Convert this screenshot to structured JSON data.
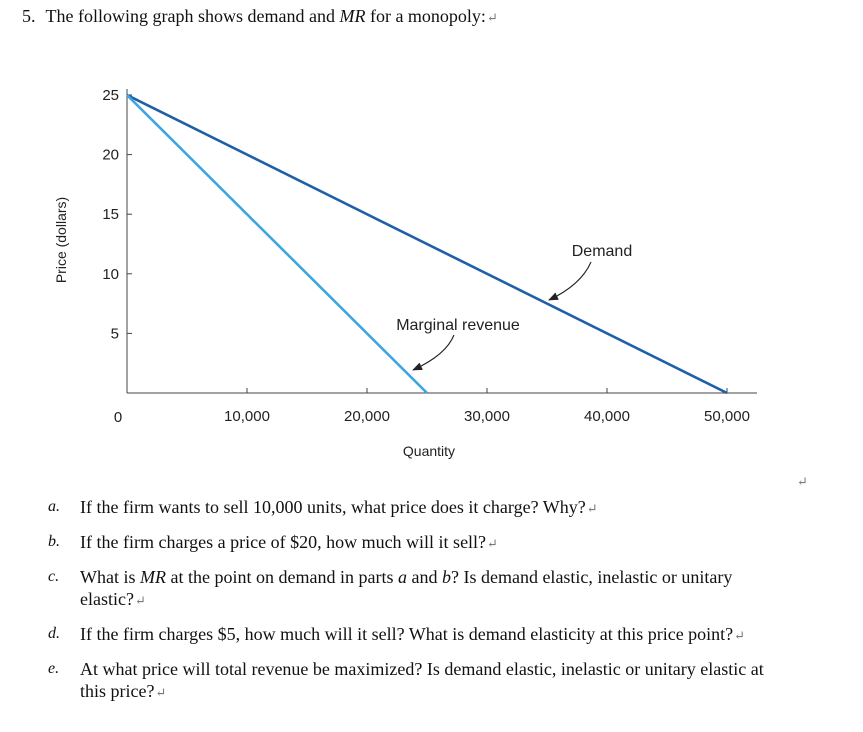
{
  "question": {
    "number": "5.",
    "pre": "The following graph shows demand and",
    "mr_abbrev": "MR",
    "post": "for a monopoly:",
    "mark": "↵"
  },
  "chart_data": {
    "type": "line",
    "xlabel": "Quantity",
    "ylabel": "Price (dollars)",
    "xlim": [
      0,
      52000
    ],
    "ylim": [
      0,
      25
    ],
    "x_ticks": [
      0,
      10000,
      20000,
      30000,
      40000,
      50000
    ],
    "x_tick_labels": [
      "",
      "10,000",
      "20,000",
      "30,000",
      "40,000",
      "50,000"
    ],
    "y_ticks": [
      5,
      10,
      15,
      20,
      25
    ],
    "y_tick_labels": [
      "5",
      "10",
      "15",
      "20",
      "25"
    ],
    "origin_label": "0",
    "series": [
      {
        "name": "Demand",
        "color": "#1f5fa8",
        "x": [
          0,
          50000
        ],
        "y": [
          25,
          0
        ]
      },
      {
        "name": "Marginal revenue",
        "color": "#3ea6df",
        "x": [
          0,
          25000
        ],
        "y": [
          25,
          0
        ]
      }
    ],
    "annotations": [
      {
        "text": "Demand",
        "points_to": "Demand"
      },
      {
        "text": "Marginal revenue",
        "points_to": "Marginal revenue"
      }
    ],
    "grid": false,
    "legend": "none"
  },
  "side_mark": "↵",
  "parts": [
    {
      "letter": "a.",
      "text": "If the firm wants to sell 10,000 units, what price does it charge? Why?",
      "mark": "↵"
    },
    {
      "letter": "b.",
      "text": "If the firm charges a price of $20, how much will it sell?",
      "mark": "↵"
    },
    {
      "letter": "c.",
      "text": "What is MR at the point on demand in parts a and b? Is demand elastic, inelastic or unitary elastic?",
      "mark": "↵"
    },
    {
      "letter": "d.",
      "text": "If the firm charges $5, how much will it sell? What is demand elasticity at this price point?",
      "mark": "↵"
    },
    {
      "letter": "e.",
      "text": "At what price will total revenue be maximized? Is demand elastic, inelastic or unitary elastic at this price?",
      "mark": "↵"
    }
  ]
}
